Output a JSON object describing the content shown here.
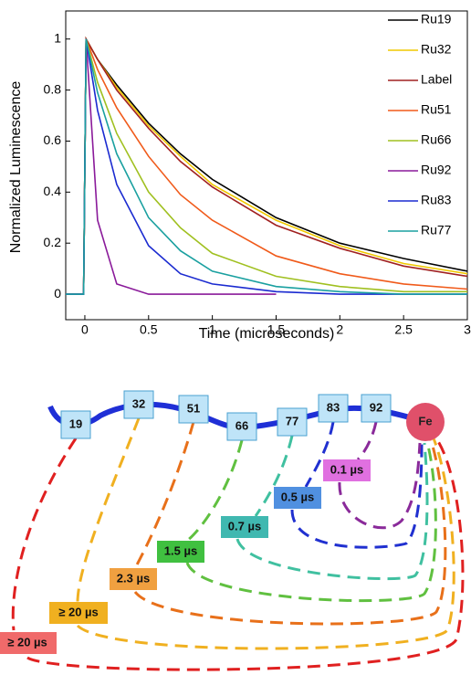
{
  "chart_data": {
    "type": "line",
    "x_label": "Time (microseconds)",
    "y_label": "Normalized Luminescence",
    "x": [
      -0.15,
      -0.01,
      0.01,
      0.1,
      0.25,
      0.5,
      0.75,
      1,
      1.5,
      2,
      2.5,
      3
    ],
    "series": [
      {
        "name": "Ru19",
        "color": "#000000",
        "values": [
          0,
          0,
          1.0,
          0.92,
          0.82,
          0.67,
          0.55,
          0.45,
          0.3,
          0.2,
          0.14,
          0.09
        ]
      },
      {
        "name": "Ru32",
        "color": "#f0c800",
        "values": [
          0,
          0,
          1.0,
          0.92,
          0.81,
          0.66,
          0.54,
          0.43,
          0.29,
          0.19,
          0.12,
          0.08
        ]
      },
      {
        "name": "Label",
        "color": "#a02020",
        "values": [
          0,
          0,
          1.0,
          0.92,
          0.8,
          0.65,
          0.52,
          0.42,
          0.27,
          0.18,
          0.11,
          0.07
        ]
      },
      {
        "name": "Ru51",
        "color": "#f05a1a",
        "values": [
          0,
          0,
          1.0,
          0.88,
          0.73,
          0.54,
          0.39,
          0.29,
          0.15,
          0.08,
          0.04,
          0.02
        ]
      },
      {
        "name": "Ru66",
        "color": "#a0c020",
        "values": [
          0,
          0,
          1.0,
          0.83,
          0.63,
          0.4,
          0.26,
          0.16,
          0.07,
          0.03,
          0.01,
          0.01
        ]
      },
      {
        "name": "Ru92",
        "color": "#8a1a9a",
        "values": [
          0,
          0,
          1.0,
          0.29,
          0.04,
          0.0,
          0.0,
          0.0,
          0.0,
          null,
          null,
          null
        ]
      },
      {
        "name": "Ru83",
        "color": "#1a2ad0",
        "values": [
          0,
          0,
          1.0,
          0.72,
          0.43,
          0.19,
          0.08,
          0.04,
          0.01,
          0.0,
          0.0,
          0.0
        ]
      },
      {
        "name": "Ru77",
        "color": "#1aa0a0",
        "values": [
          0,
          0,
          1.0,
          0.79,
          0.55,
          0.3,
          0.17,
          0.09,
          0.03,
          0.01,
          0.0,
          0.0
        ]
      }
    ],
    "xlim": [
      -0.15,
      3
    ],
    "xticks": [
      0,
      0.5,
      1,
      1.5,
      2,
      2.5,
      3
    ],
    "ylim": [
      -0.1,
      1.11
    ],
    "yticks": [
      0,
      0.2,
      0.4,
      0.6,
      0.8,
      1
    ],
    "legend": "upper right"
  },
  "diagram": {
    "nodes": [
      "19",
      "32",
      "51",
      "66",
      "77",
      "83",
      "92",
      "Fe"
    ],
    "lifetimes": [
      "0.1 µs",
      "0.5 µs",
      "0.7 µs",
      "1.5 µs",
      "2.3 µs",
      "≥ 20 µs",
      "≥ 20 µs"
    ]
  }
}
